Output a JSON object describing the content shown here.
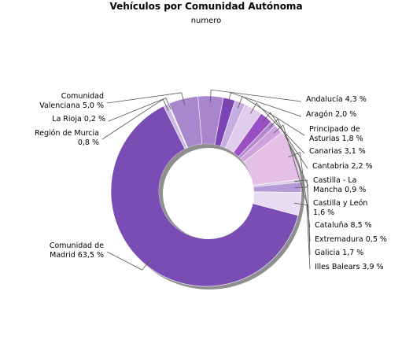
{
  "chart_data": {
    "type": "pie",
    "style": "donut",
    "title": "Vehículos por Comunidad Autónoma",
    "subtitle": "numero",
    "unit": "%",
    "slices": [
      {
        "label_lines": [
          "Andalucía 4,3 %"
        ],
        "value": 4.3,
        "color": "#a885cc"
      },
      {
        "label_lines": [
          "Aragón 2,0 %"
        ],
        "value": 2.0,
        "color": "#7b44b4"
      },
      {
        "label_lines": [
          "Principado de",
          "Asturias 1,8 %"
        ],
        "value": 1.8,
        "color": "#c7aee0"
      },
      {
        "label_lines": [
          "Canarias 3,1 %"
        ],
        "value": 3.1,
        "color": "#e0ccec"
      },
      {
        "label_lines": [
          "Cantabria 2,2 %"
        ],
        "value": 2.2,
        "color": "#9a50c4"
      },
      {
        "label_lines": [
          "Castilla - La",
          "Mancha 0,9 %"
        ],
        "value": 0.9,
        "color": "#b388cf"
      },
      {
        "label_lines": [
          "Castilla y León",
          "1,6 %"
        ],
        "value": 1.6,
        "color": "#cda2dd"
      },
      {
        "label_lines": [
          "Cataluña 8,5 %"
        ],
        "value": 8.5,
        "color": "#e4c0e6"
      },
      {
        "label_lines": [
          "Extremadura 0,5 %"
        ],
        "value": 0.5,
        "color": "#d6cbe6"
      },
      {
        "label_lines": [
          "Galicia 1,7 %"
        ],
        "value": 1.7,
        "color": "#b699d8"
      },
      {
        "label_lines": [
          "Illes Balears 3,9 %"
        ],
        "value": 3.9,
        "color": "#e6ddf2"
      },
      {
        "label_lines": [
          "Comunidad de",
          "Madrid 63,5 %"
        ],
        "value": 63.5,
        "color": "#7a4db4"
      },
      {
        "label_lines": [
          "Región de Murcia",
          "0,8 %"
        ],
        "value": 0.8,
        "color": "#cbb8e2"
      },
      {
        "label_lines": [
          "La Rioja 0,2 %"
        ],
        "value": 0.2,
        "color": "#e8e2f1"
      },
      {
        "label_lines": [
          "Comunidad",
          "Valenciana 5,0 %"
        ],
        "value": 5.0,
        "color": "#a987cd"
      }
    ]
  }
}
